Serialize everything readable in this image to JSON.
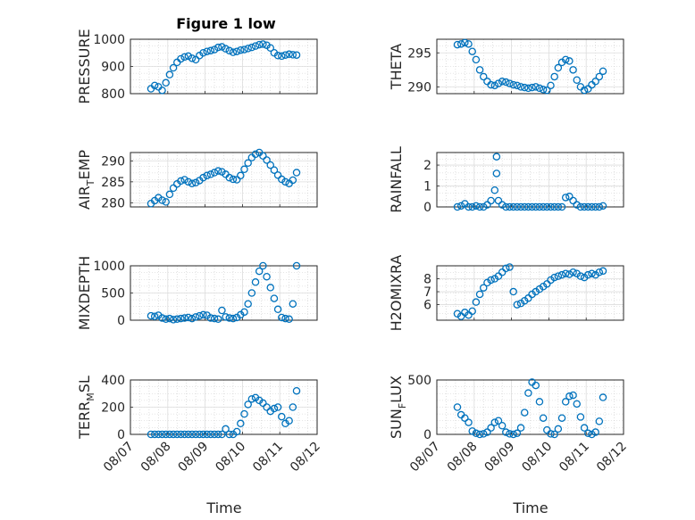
{
  "figure_title": "Figure 1 low",
  "colors": {
    "marker": "#0072BD",
    "axis": "#262626",
    "grid": "#cccccc"
  },
  "chart_data": [
    {
      "type": "scatter",
      "ylabel": "PRESSURE",
      "title": "Figure 1 low",
      "xlim": [
        0,
        5
      ],
      "ylim": [
        800,
        1000
      ],
      "yticks": [
        800,
        900,
        1000
      ],
      "x": [
        0.55,
        0.65,
        0.75,
        0.85,
        0.95,
        1.05,
        1.15,
        1.25,
        1.35,
        1.45,
        1.55,
        1.65,
        1.75,
        1.85,
        1.95,
        2.05,
        2.15,
        2.25,
        2.35,
        2.45,
        2.55,
        2.65,
        2.75,
        2.85,
        2.95,
        3.05,
        3.15,
        3.25,
        3.35,
        3.45,
        3.55,
        3.65,
        3.75,
        3.85,
        3.95,
        4.05,
        4.15,
        4.25,
        4.35,
        4.45
      ],
      "y": [
        818,
        830,
        825,
        812,
        840,
        870,
        895,
        915,
        928,
        935,
        938,
        930,
        925,
        940,
        950,
        955,
        958,
        962,
        970,
        972,
        965,
        958,
        952,
        955,
        960,
        962,
        966,
        970,
        975,
        980,
        982,
        978,
        968,
        950,
        940,
        938,
        942,
        945,
        943,
        942
      ]
    },
    {
      "type": "scatter",
      "ylabel": "THETA",
      "xlim": [
        0,
        5
      ],
      "ylim": [
        289,
        297
      ],
      "yticks": [
        290,
        295
      ],
      "x": [
        0.55,
        0.65,
        0.75,
        0.85,
        0.95,
        1.05,
        1.15,
        1.25,
        1.35,
        1.45,
        1.55,
        1.65,
        1.75,
        1.85,
        1.95,
        2.05,
        2.15,
        2.25,
        2.35,
        2.45,
        2.55,
        2.65,
        2.75,
        2.85,
        2.95,
        3.05,
        3.15,
        3.25,
        3.35,
        3.45,
        3.55,
        3.65,
        3.75,
        3.85,
        3.95,
        4.05,
        4.15,
        4.25,
        4.35,
        4.45
      ],
      "y": [
        296.2,
        296.3,
        296.5,
        296.3,
        295.2,
        294.0,
        292.5,
        291.5,
        290.8,
        290.3,
        290.2,
        290.5,
        290.8,
        290.7,
        290.5,
        290.3,
        290.2,
        290.0,
        289.9,
        289.8,
        289.9,
        290.0,
        289.8,
        289.6,
        289.5,
        290.2,
        291.5,
        292.8,
        293.6,
        294.0,
        293.8,
        292.5,
        291.0,
        290.0,
        289.5,
        289.7,
        290.3,
        290.8,
        291.5,
        292.3
      ]
    },
    {
      "type": "scatter",
      "ylabel": "AIR_TEMP",
      "xlim": [
        0,
        5
      ],
      "ylim": [
        279,
        292
      ],
      "yticks": [
        280,
        285,
        290
      ],
      "x": [
        0.55,
        0.65,
        0.75,
        0.85,
        0.95,
        1.05,
        1.15,
        1.25,
        1.35,
        1.45,
        1.55,
        1.65,
        1.75,
        1.85,
        1.95,
        2.05,
        2.15,
        2.25,
        2.35,
        2.45,
        2.55,
        2.65,
        2.75,
        2.85,
        2.95,
        3.05,
        3.15,
        3.25,
        3.35,
        3.45,
        3.55,
        3.65,
        3.75,
        3.85,
        3.95,
        4.05,
        4.15,
        4.25,
        4.35,
        4.45
      ],
      "y": [
        279.8,
        280.5,
        281.2,
        280.6,
        280.2,
        282.0,
        283.5,
        284.5,
        285.2,
        285.5,
        285.0,
        284.6,
        284.8,
        285.3,
        286.0,
        286.5,
        286.8,
        287.2,
        287.6,
        287.4,
        286.8,
        286.0,
        285.6,
        285.5,
        286.5,
        288.0,
        289.5,
        290.8,
        291.6,
        292.0,
        291.2,
        290.2,
        289.0,
        287.8,
        286.6,
        285.6,
        285.0,
        284.6,
        285.4,
        287.2
      ]
    },
    {
      "type": "scatter",
      "ylabel": "RAINFALL",
      "xlim": [
        0,
        5
      ],
      "ylim": [
        0,
        2.6
      ],
      "yticks": [
        0,
        1,
        2
      ],
      "x": [
        0.55,
        0.65,
        0.75,
        0.85,
        0.95,
        1.05,
        1.15,
        1.25,
        1.35,
        1.45,
        1.55,
        1.6,
        1.6,
        1.65,
        1.75,
        1.85,
        1.95,
        2.05,
        2.15,
        2.25,
        2.35,
        2.45,
        2.55,
        2.65,
        2.75,
        2.85,
        2.95,
        3.05,
        3.15,
        3.25,
        3.35,
        3.45,
        3.55,
        3.65,
        3.75,
        3.85,
        3.95,
        4.05,
        4.15,
        4.25,
        4.35,
        4.45
      ],
      "y": [
        0,
        0.05,
        0.15,
        0,
        0,
        0.05,
        0,
        0,
        0.1,
        0.3,
        0.8,
        2.4,
        1.6,
        0.3,
        0.1,
        0,
        0,
        0,
        0,
        0,
        0,
        0,
        0,
        0,
        0,
        0,
        0,
        0,
        0,
        0,
        0,
        0.45,
        0.5,
        0.3,
        0.1,
        0,
        0,
        0,
        0,
        0,
        0,
        0.05
      ]
    },
    {
      "type": "scatter",
      "ylabel": "MIXDEPTH",
      "xlim": [
        0,
        5
      ],
      "ylim": [
        0,
        1000
      ],
      "yticks": [
        0,
        500,
        1000
      ],
      "x": [
        0.55,
        0.65,
        0.75,
        0.85,
        0.95,
        1.05,
        1.15,
        1.25,
        1.35,
        1.45,
        1.55,
        1.65,
        1.75,
        1.85,
        1.95,
        2.05,
        2.15,
        2.25,
        2.35,
        2.45,
        2.55,
        2.65,
        2.75,
        2.85,
        2.95,
        3.05,
        3.15,
        3.25,
        3.35,
        3.45,
        3.55,
        3.65,
        3.75,
        3.85,
        3.95,
        4.05,
        4.15,
        4.25,
        4.35,
        4.45
      ],
      "y": [
        80,
        70,
        90,
        40,
        20,
        30,
        10,
        20,
        30,
        40,
        50,
        30,
        60,
        80,
        100,
        90,
        40,
        30,
        20,
        180,
        60,
        40,
        30,
        50,
        100,
        150,
        300,
        500,
        700,
        900,
        1000,
        800,
        600,
        400,
        200,
        50,
        30,
        20,
        300,
        1000
      ]
    },
    {
      "type": "scatter",
      "ylabel": "H2OMIXRA",
      "xlim": [
        0,
        5
      ],
      "ylim": [
        4.8,
        9
      ],
      "yticks": [
        6,
        7,
        8
      ],
      "x": [
        0.55,
        0.65,
        0.75,
        0.85,
        0.95,
        1.05,
        1.15,
        1.25,
        1.35,
        1.45,
        1.55,
        1.65,
        1.75,
        1.85,
        1.95,
        2.05,
        2.15,
        2.25,
        2.35,
        2.45,
        2.55,
        2.65,
        2.75,
        2.85,
        2.95,
        3.05,
        3.15,
        3.25,
        3.35,
        3.45,
        3.55,
        3.65,
        3.75,
        3.85,
        3.95,
        4.05,
        4.15,
        4.25,
        4.35,
        4.45
      ],
      "y": [
        5.3,
        5.1,
        5.4,
        5.2,
        5.5,
        6.2,
        6.8,
        7.3,
        7.7,
        7.9,
        8.0,
        8.2,
        8.5,
        8.8,
        8.9,
        7.0,
        6.0,
        6.1,
        6.3,
        6.5,
        6.8,
        7.0,
        7.2,
        7.4,
        7.6,
        7.9,
        8.1,
        8.2,
        8.3,
        8.4,
        8.35,
        8.5,
        8.4,
        8.2,
        8.1,
        8.3,
        8.4,
        8.3,
        8.5,
        8.6
      ]
    },
    {
      "type": "scatter",
      "ylabel": "TERR_MSL",
      "xlim": [
        0,
        5
      ],
      "ylim": [
        0,
        400
      ],
      "yticks": [
        0,
        200,
        400
      ],
      "x": [
        0.55,
        0.65,
        0.75,
        0.85,
        0.95,
        1.05,
        1.15,
        1.25,
        1.35,
        1.45,
        1.55,
        1.65,
        1.75,
        1.85,
        1.95,
        2.05,
        2.15,
        2.25,
        2.35,
        2.45,
        2.55,
        2.65,
        2.75,
        2.85,
        2.95,
        3.05,
        3.15,
        3.25,
        3.35,
        3.45,
        3.55,
        3.65,
        3.75,
        3.85,
        3.95,
        4.05,
        4.15,
        4.25,
        4.35,
        4.45
      ],
      "y": [
        0,
        0,
        0,
        0,
        0,
        0,
        0,
        0,
        0,
        0,
        0,
        0,
        0,
        0,
        0,
        0,
        0,
        0,
        0,
        0,
        40,
        0,
        0,
        20,
        80,
        150,
        220,
        260,
        270,
        250,
        230,
        200,
        170,
        190,
        200,
        130,
        80,
        100,
        200,
        320
      ]
    },
    {
      "type": "scatter",
      "ylabel": "SUN_FLUX",
      "xlim": [
        0,
        5
      ],
      "ylim": [
        0,
        500
      ],
      "yticks": [
        0,
        500
      ],
      "x": [
        0.55,
        0.65,
        0.75,
        0.85,
        0.95,
        1.05,
        1.15,
        1.25,
        1.35,
        1.45,
        1.55,
        1.65,
        1.75,
        1.85,
        1.95,
        2.05,
        2.15,
        2.25,
        2.35,
        2.45,
        2.55,
        2.65,
        2.75,
        2.85,
        2.95,
        3.05,
        3.15,
        3.25,
        3.35,
        3.45,
        3.55,
        3.65,
        3.75,
        3.85,
        3.95,
        4.05,
        4.15,
        4.25,
        4.35,
        4.45
      ],
      "y": [
        250,
        180,
        150,
        110,
        30,
        10,
        0,
        5,
        20,
        60,
        110,
        125,
        80,
        20,
        5,
        0,
        10,
        60,
        200,
        380,
        480,
        450,
        300,
        150,
        40,
        5,
        0,
        50,
        150,
        300,
        350,
        360,
        280,
        160,
        60,
        10,
        0,
        20,
        120,
        340
      ]
    }
  ],
  "xaxis": {
    "label": "Time",
    "ticks": [
      "08/07",
      "08/08",
      "08/09",
      "08/10",
      "08/11",
      "08/12"
    ]
  }
}
